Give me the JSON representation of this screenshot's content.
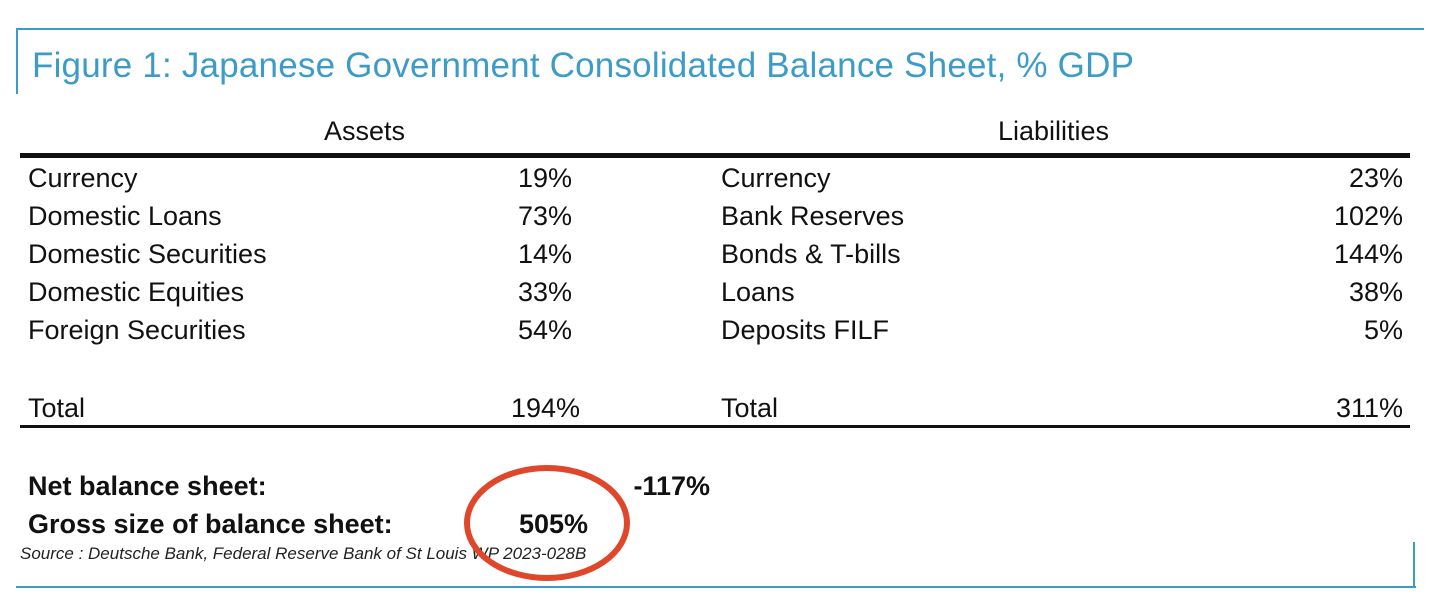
{
  "title": "Figure 1: Japanese Government Consolidated Balance Sheet, % GDP",
  "assets": {
    "header": "Assets",
    "rows": [
      {
        "label": "Currency",
        "value": "19%"
      },
      {
        "label": "Domestic Loans",
        "value": "73%"
      },
      {
        "label": "Domestic Securities",
        "value": "14%"
      },
      {
        "label": "Domestic Equities",
        "value": "33%"
      },
      {
        "label": "Foreign Securities",
        "value": "54%"
      }
    ],
    "total_label": "Total",
    "total_value": "194%"
  },
  "liabilities": {
    "header": "Liabilities",
    "rows": [
      {
        "label": "Currency",
        "value": "23%"
      },
      {
        "label": "Bank Reserves",
        "value": "102%"
      },
      {
        "label": "Bonds & T-bills",
        "value": "144%"
      },
      {
        "label": "Loans",
        "value": "38%"
      },
      {
        "label": "Deposits FILF",
        "value": "5%"
      }
    ],
    "total_label": "Total",
    "total_value": "311%"
  },
  "summary": {
    "net_label": "Net balance sheet:",
    "net_value": "-117%",
    "gross_label": "Gross size of balance sheet:",
    "gross_value": "505%"
  },
  "source": "Source : Deutsche Bank, Federal Reserve Bank of St Louis WP 2023-028B",
  "colors": {
    "accent": "#3d9cc7",
    "highlight_circle": "#e0472a"
  }
}
